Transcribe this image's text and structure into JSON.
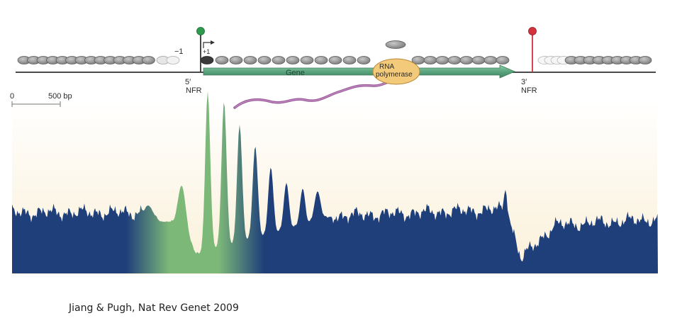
{
  "labels": {
    "minus_one": "−1",
    "plus_one": "+1",
    "gene": "Gene",
    "rna_line1": "RNA",
    "rna_line2": "polymerase",
    "five_prime": "5′",
    "nfr": "NFR",
    "three_prime": "3′",
    "scale_zero": "0",
    "scale_500": "500 bp"
  },
  "citation": "Jiang & Pugh, Nat Rev Genet 2009",
  "colors": {
    "nucleosome": "#8c8c8c",
    "nucleosome_dark": "#3c3c3c",
    "nucleosome_light": "#e2e2e2",
    "dna": "#4a4a4a",
    "gene_arrow": "#5aa47e",
    "start_pin": "#2e9a4e",
    "stop_pin": "#d6323c",
    "rna_polymerase": "#f3c97a",
    "transcript": "#9a5a9a",
    "occupancy": "#1f3f7a",
    "occupancy_highlight": "#7cb878",
    "background_top": "#ffffff",
    "background_bottom": "#fbf0d8"
  },
  "icons": {
    "start_pin": "green-pin-icon",
    "stop_pin": "red-pin-icon",
    "tss_arrow": "arrow-right-icon"
  }
}
